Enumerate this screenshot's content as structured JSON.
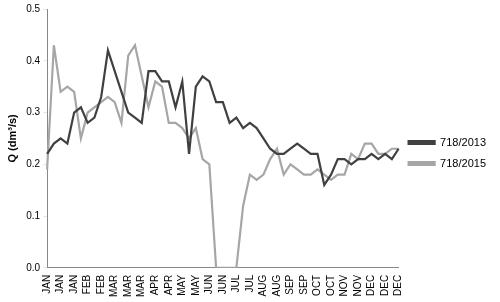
{
  "chart_data": {
    "type": "line",
    "y_label": "Q (dm³/s)",
    "categories": [
      "JAN",
      null,
      "JAN",
      null,
      "JAN",
      null,
      "FEB",
      null,
      "FEB",
      null,
      "MAR",
      null,
      "MAR",
      null,
      "MAR",
      null,
      "APR",
      null,
      "APR",
      null,
      "MAY",
      null,
      "MAY",
      null,
      "JUN",
      null,
      "JUN",
      null,
      "JUL",
      null,
      "JUL",
      null,
      "AUG",
      null,
      "AUG",
      null,
      "SEP",
      null,
      "SEP",
      null,
      "OCT",
      null,
      "OCT",
      null,
      "NOV",
      null,
      "NOV",
      null,
      "DEC",
      null,
      "DEC",
      null,
      "DEC"
    ],
    "series": [
      {
        "name": "718/2013",
        "color": "#404040",
        "values": [
          0.22,
          0.24,
          0.25,
          0.24,
          0.3,
          0.31,
          0.28,
          0.29,
          0.33,
          0.42,
          0.38,
          0.34,
          0.3,
          0.29,
          0.28,
          0.38,
          0.38,
          0.36,
          0.36,
          0.31,
          0.36,
          0.22,
          0.35,
          0.37,
          0.36,
          0.32,
          0.32,
          0.28,
          0.29,
          0.27,
          0.28,
          0.27,
          0.25,
          0.23,
          0.22,
          0.22,
          0.23,
          0.24,
          0.23,
          0.22,
          0.22,
          0.16,
          0.18,
          0.21,
          0.21,
          0.2,
          0.21,
          0.21,
          0.22,
          0.21,
          0.22,
          0.21,
          0.23
        ]
      },
      {
        "name": "718/2015",
        "color": "#a6a6a6",
        "values": [
          0.19,
          0.43,
          0.34,
          0.35,
          0.34,
          0.25,
          0.3,
          0.31,
          0.32,
          0.33,
          0.32,
          0.28,
          0.41,
          0.43,
          0.37,
          0.31,
          0.36,
          0.35,
          0.28,
          0.28,
          0.27,
          0.25,
          0.27,
          0.21,
          0.2,
          0.0,
          0.0,
          0.0,
          0.0,
          0.12,
          0.18,
          0.17,
          0.18,
          0.21,
          0.23,
          0.18,
          0.2,
          0.19,
          0.18,
          0.18,
          0.19,
          0.18,
          0.17,
          0.18,
          0.18,
          0.22,
          0.21,
          0.24,
          0.24,
          0.22,
          0.22,
          0.23,
          0.23
        ]
      }
    ],
    "ylim": [
      0,
      0.5
    ],
    "yticks": [
      {
        "value": 0,
        "label": "0.0"
      },
      0.1,
      0.2,
      0.3,
      0.4,
      0.5
    ],
    "grid": false,
    "legend": "right"
  }
}
